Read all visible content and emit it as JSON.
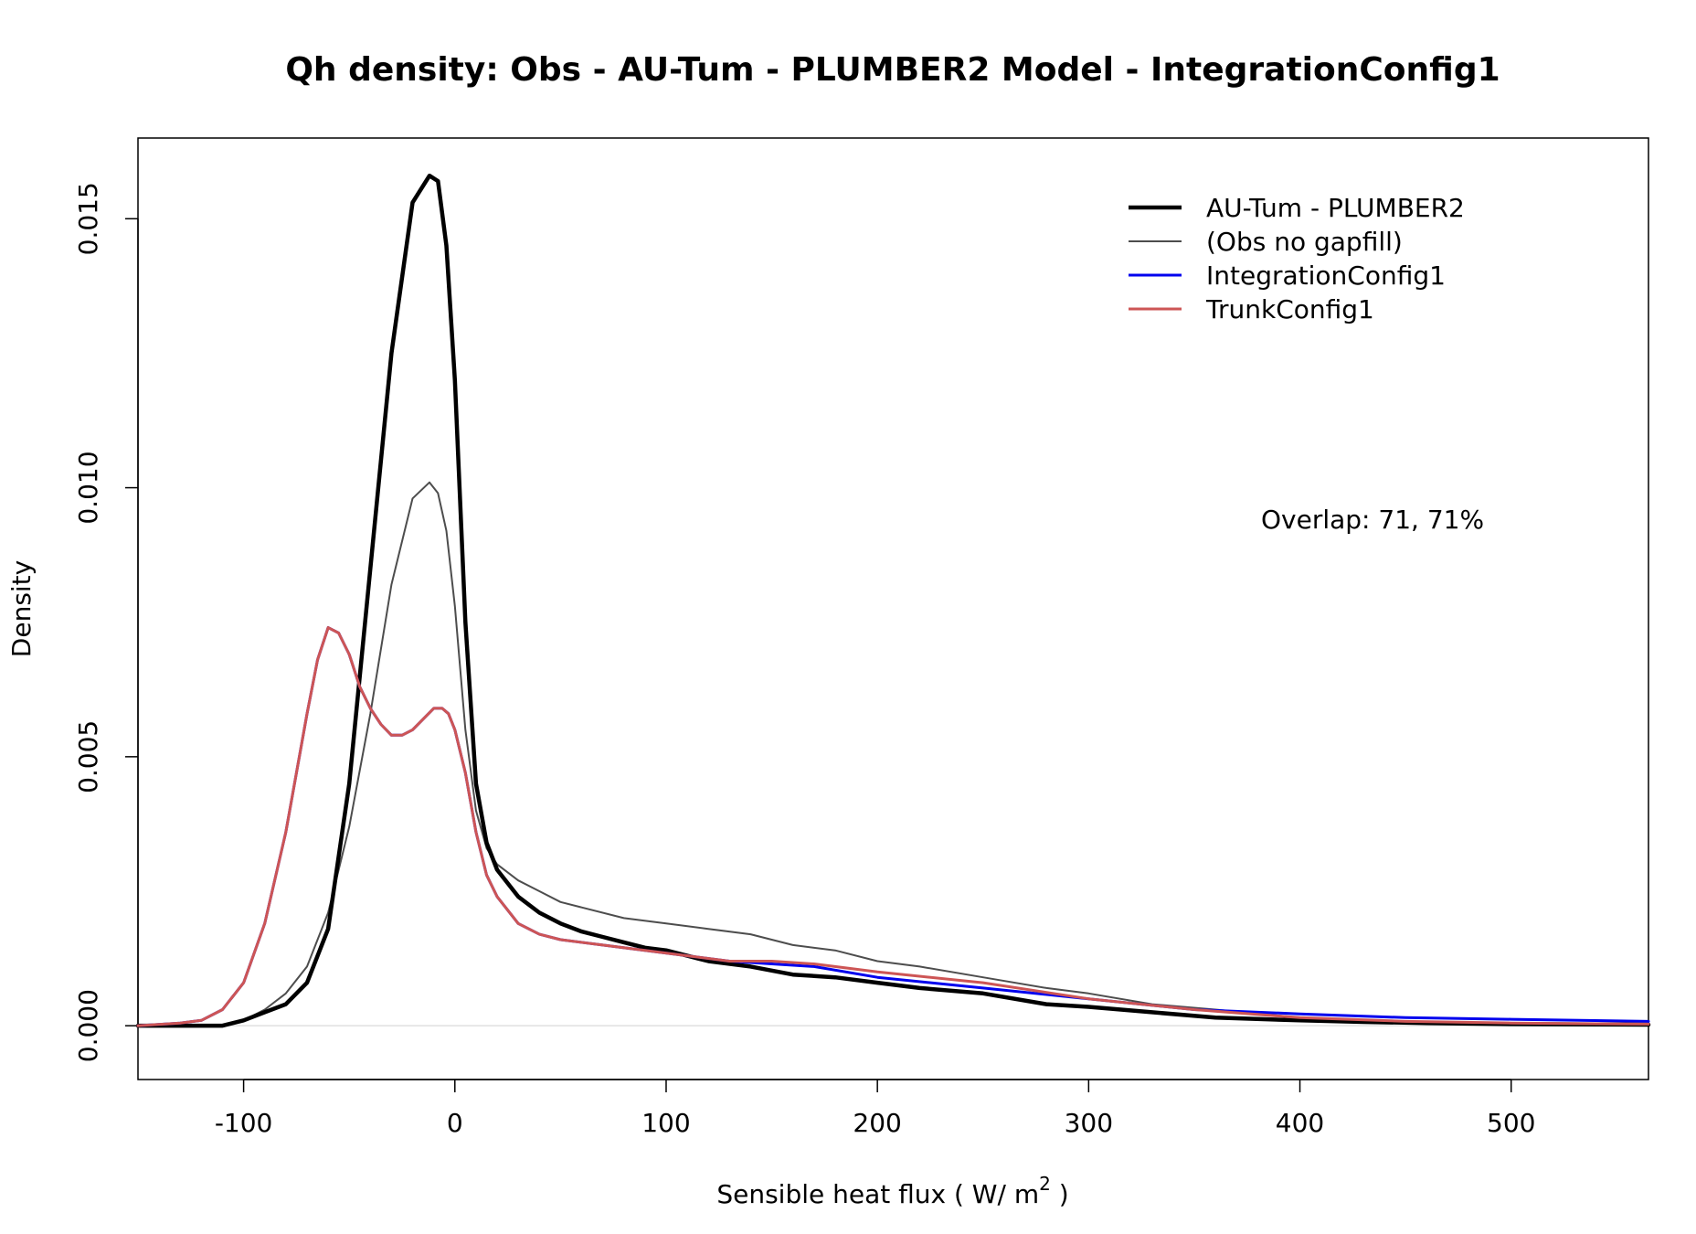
{
  "chart_data": {
    "type": "line",
    "title": "Qh density:   Obs - AU-Tum - PLUMBER2   Model - IntegrationConfig1",
    "xlabel": "Sensible heat flux  ( W/ m",
    "xlabel_sup": "2",
    "xlabel_end": " )",
    "ylabel": "Density",
    "xlim": [
      -150,
      565
    ],
    "ylim": [
      -0.001,
      0.0165
    ],
    "x_ticks": [
      -100,
      0,
      100,
      200,
      300,
      400,
      500
    ],
    "x_tick_labels": [
      "-100",
      "0",
      "100",
      "200",
      "300",
      "400",
      "500"
    ],
    "y_ticks": [
      0.0,
      0.005,
      0.01,
      0.015
    ],
    "y_tick_labels": [
      "0.000",
      "0.005",
      "0.010",
      "0.015"
    ],
    "legend_position": "top-right",
    "annotation": "Overlap: 71, 71%",
    "series": [
      {
        "name": "AU-Tum - PLUMBER2",
        "color": "#000000",
        "x": [
          -150,
          -110,
          -100,
          -90,
          -80,
          -70,
          -60,
          -50,
          -40,
          -30,
          -20,
          -12,
          -8,
          -4,
          0,
          5,
          10,
          15,
          20,
          30,
          40,
          50,
          60,
          70,
          80,
          90,
          100,
          110,
          120,
          140,
          160,
          180,
          200,
          220,
          250,
          280,
          300,
          330,
          360,
          400,
          430,
          460,
          500,
          565
        ],
        "y": [
          0.0,
          0.0,
          0.0001,
          0.00025,
          0.0004,
          0.0008,
          0.0018,
          0.0045,
          0.0085,
          0.0125,
          0.0153,
          0.0158,
          0.0157,
          0.0145,
          0.012,
          0.0075,
          0.0045,
          0.0034,
          0.0029,
          0.0024,
          0.0021,
          0.0019,
          0.00175,
          0.00165,
          0.00155,
          0.00145,
          0.0014,
          0.0013,
          0.0012,
          0.0011,
          0.00095,
          0.0009,
          0.0008,
          0.0007,
          0.0006,
          0.0004,
          0.00035,
          0.00025,
          0.00015,
          0.0001,
          7e-05,
          5e-05,
          3e-05,
          2e-05
        ]
      },
      {
        "name": "(Obs no gapfill)",
        "color": "#4d4d4d",
        "x": [
          -150,
          -110,
          -100,
          -90,
          -80,
          -70,
          -60,
          -50,
          -40,
          -30,
          -20,
          -12,
          -8,
          -4,
          0,
          5,
          10,
          15,
          20,
          30,
          40,
          50,
          60,
          80,
          100,
          120,
          140,
          160,
          180,
          200,
          220,
          250,
          280,
          300,
          330,
          360,
          400,
          430,
          460,
          500,
          565
        ],
        "y": [
          0.0,
          0.0,
          0.0001,
          0.0003,
          0.0006,
          0.0011,
          0.0021,
          0.0037,
          0.0058,
          0.0082,
          0.0098,
          0.0101,
          0.0099,
          0.0092,
          0.0078,
          0.0055,
          0.004,
          0.0033,
          0.003,
          0.0027,
          0.0025,
          0.0023,
          0.0022,
          0.002,
          0.0019,
          0.0018,
          0.0017,
          0.0015,
          0.0014,
          0.0012,
          0.0011,
          0.0009,
          0.0007,
          0.0006,
          0.0004,
          0.0003,
          0.00015,
          0.0001,
          7e-05,
          4e-05,
          2e-05
        ]
      },
      {
        "name": "IntegrationConfig1",
        "color": "#0000ee",
        "x": [
          -150,
          -130,
          -120,
          -110,
          -100,
          -90,
          -80,
          -70,
          -65,
          -60,
          -55,
          -50,
          -45,
          -40,
          -35,
          -30,
          -25,
          -20,
          -15,
          -10,
          -6,
          -3,
          0,
          5,
          10,
          15,
          20,
          30,
          40,
          50,
          70,
          90,
          110,
          130,
          150,
          170,
          200,
          250,
          300,
          350,
          400,
          450,
          500,
          565
        ],
        "y": [
          0.0,
          5e-05,
          0.0001,
          0.0003,
          0.0008,
          0.0019,
          0.0036,
          0.0058,
          0.0068,
          0.0074,
          0.0073,
          0.0069,
          0.0063,
          0.0059,
          0.0056,
          0.0054,
          0.0054,
          0.0055,
          0.0057,
          0.0059,
          0.0059,
          0.0058,
          0.0055,
          0.0047,
          0.0036,
          0.0028,
          0.0024,
          0.0019,
          0.0017,
          0.0016,
          0.0015,
          0.0014,
          0.0013,
          0.0012,
          0.00115,
          0.0011,
          0.0009,
          0.0007,
          0.0005,
          0.0003,
          0.00022,
          0.00015,
          0.00012,
          8e-05
        ]
      },
      {
        "name": "TrunkConfig1",
        "color": "#cd5555",
        "x": [
          -150,
          -130,
          -120,
          -110,
          -100,
          -90,
          -80,
          -70,
          -65,
          -60,
          -55,
          -50,
          -45,
          -40,
          -35,
          -30,
          -25,
          -20,
          -15,
          -10,
          -6,
          -3,
          0,
          5,
          10,
          15,
          20,
          30,
          40,
          50,
          70,
          90,
          110,
          130,
          150,
          170,
          200,
          250,
          300,
          350,
          400,
          450,
          500,
          565
        ],
        "y": [
          0.0,
          5e-05,
          0.0001,
          0.0003,
          0.0008,
          0.0019,
          0.0036,
          0.0058,
          0.0068,
          0.0074,
          0.0073,
          0.0069,
          0.0063,
          0.0059,
          0.0056,
          0.0054,
          0.0054,
          0.0055,
          0.0057,
          0.0059,
          0.0059,
          0.0058,
          0.0055,
          0.0047,
          0.0036,
          0.0028,
          0.0024,
          0.0019,
          0.0017,
          0.0016,
          0.0015,
          0.0014,
          0.0013,
          0.0012,
          0.0012,
          0.00115,
          0.001,
          0.0008,
          0.0005,
          0.0003,
          0.00015,
          8e-05,
          5e-05,
          3e-05
        ]
      }
    ]
  }
}
